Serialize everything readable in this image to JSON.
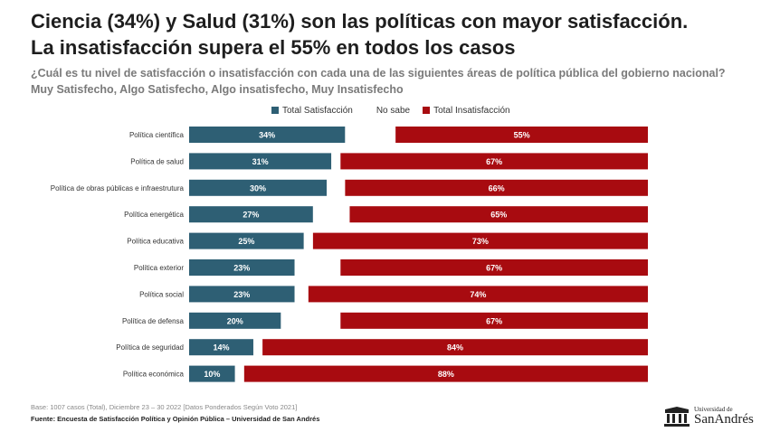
{
  "header": {
    "title_line1": "Ciencia (34%) y Salud (31%) son las políticas con mayor satisfacción.",
    "title_line2": "La insatisfacción supera el 55% en todos los casos",
    "subtitle_line1": "¿Cuál es tu nivel de satisfacción o insatisfacción con cada una de las siguientes áreas de política pública del gobierno nacional?",
    "subtitle_line2": "Muy Satisfecho, Algo Satisfecho, Algo insatisfecho, Muy Insatisfecho"
  },
  "legend": {
    "satisfaction": "Total Satisfacción",
    "no_sabe": "No sabe",
    "insatisfaction": "Total Insatisfacción"
  },
  "colors": {
    "satisfaction": "#2e5f74",
    "insatisfaction": "#a80b10",
    "no_sabe": "#ffffff"
  },
  "chart_data": {
    "type": "bar",
    "orientation": "horizontal",
    "stacked": true,
    "categories": [
      "Política científica",
      "Política de salud",
      "Política de obras públicas e infraestrutura",
      "Política energética",
      "Política educativa",
      "Política exterior",
      "Política social",
      "Política de defensa",
      "Política de seguridad",
      "Política económica"
    ],
    "series": [
      {
        "name": "Total Satisfacción",
        "values": [
          34,
          31,
          30,
          27,
          25,
          23,
          23,
          20,
          14,
          10
        ],
        "labels": [
          "34%",
          "31%",
          "30%",
          "27%",
          "25%",
          "23%",
          "23%",
          "20%",
          "14%",
          "10%"
        ]
      },
      {
        "name": "No sabe",
        "values": [
          11,
          2,
          4,
          8,
          2,
          10,
          3,
          13,
          2,
          2
        ],
        "labels": []
      },
      {
        "name": "Total Insatisfacción",
        "values": [
          55,
          67,
          66,
          65,
          73,
          67,
          74,
          67,
          84,
          88
        ],
        "labels": [
          "55%",
          "67%",
          "66%",
          "65%",
          "73%",
          "67%",
          "74%",
          "67%",
          "84%",
          "88%"
        ]
      }
    ],
    "xlim": [
      0,
      100
    ],
    "legend_position": "top"
  },
  "footer": {
    "base": "Base: 1007 casos (Total), Diciembre 23 – 30 2022 [Datos Ponderados Según Voto 2021]",
    "source": "Fuente: Encuesta de Satisfacción Política y Opinión Pública – Universidad de San Andrés"
  },
  "logo": {
    "small_text": "Universidad de",
    "big_text": "SanAndrés",
    "icon": "university-crest-icon"
  }
}
